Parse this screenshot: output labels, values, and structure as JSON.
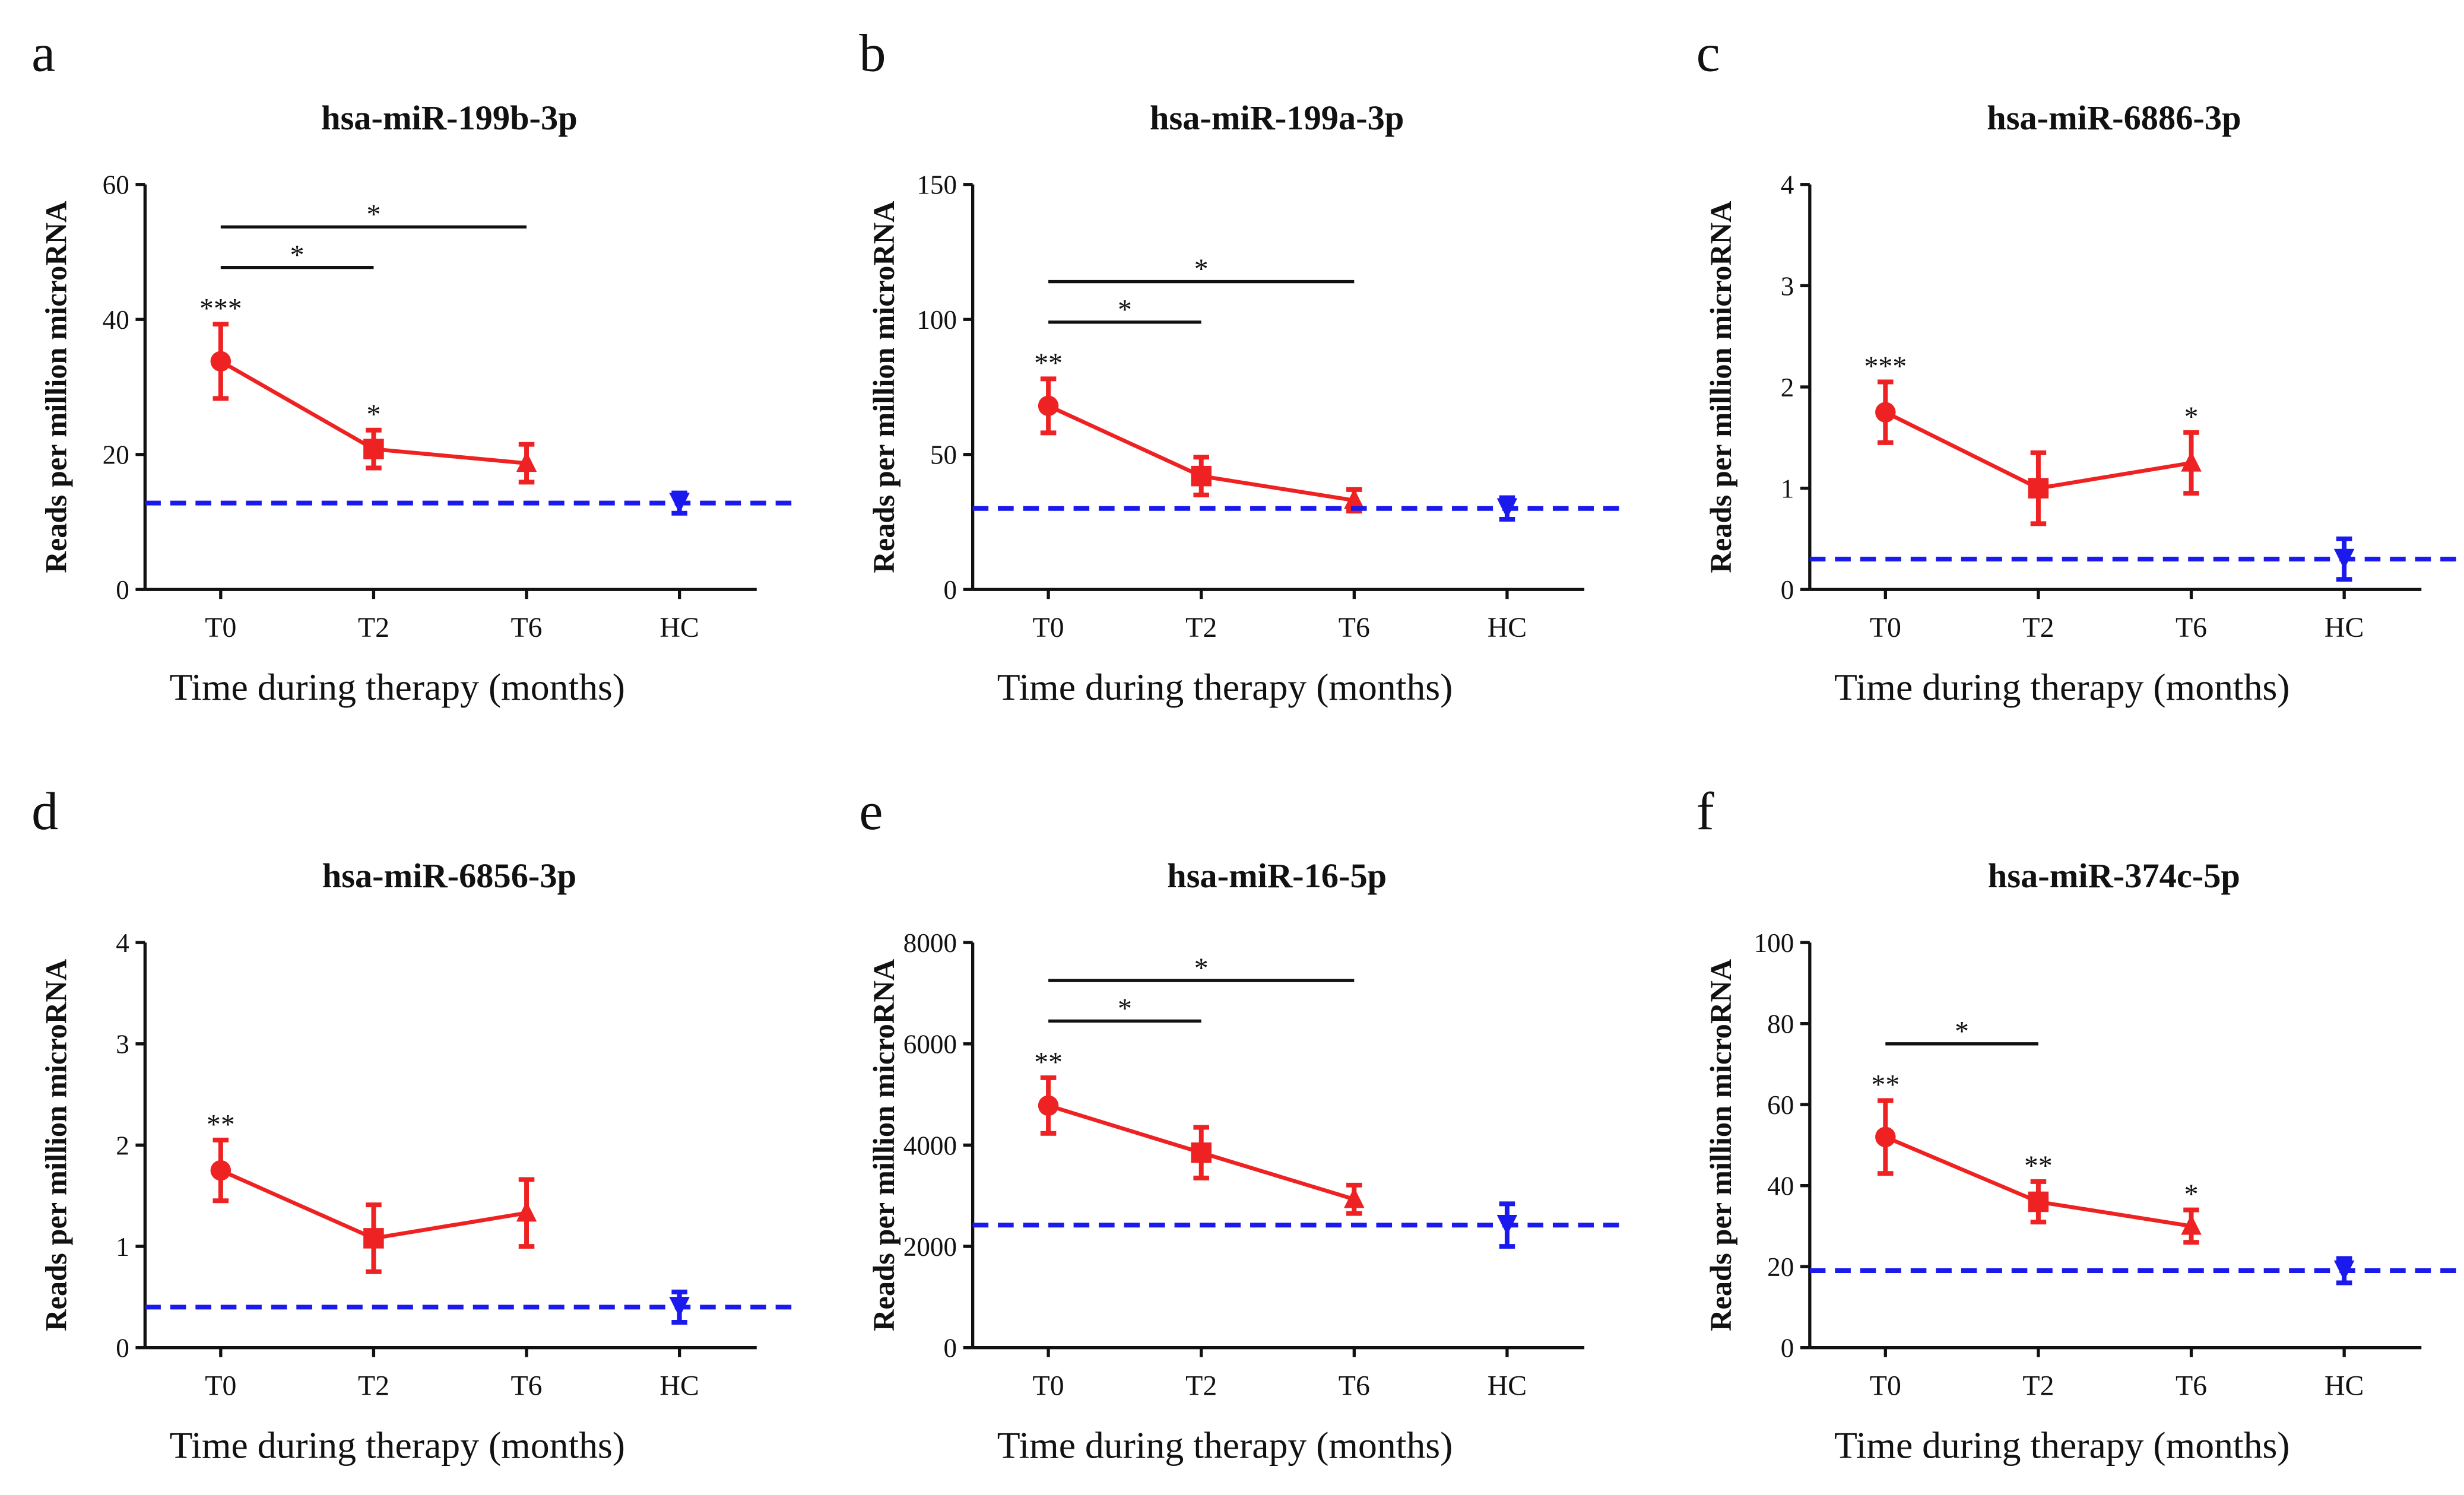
{
  "chart_data": [
    {
      "type": "line",
      "letter": "a",
      "title": "hsa-miR-199b-3p",
      "y_label": "Reads per million microRNA",
      "x_label": "Time during therapy (months)",
      "categories": [
        "T0",
        "T2",
        "T6",
        "HC"
      ],
      "markers": [
        "circle",
        "square",
        "triangle",
        "triangle-down"
      ],
      "series": [
        {
          "color": "#ee2222",
          "values": [
            33.8,
            20.8,
            18.7,
            null
          ],
          "errors": [
            5.5,
            2.8,
            2.8,
            null
          ]
        },
        {
          "color": "#1a1aee",
          "values": [
            null,
            null,
            null,
            12.8
          ],
          "errors": [
            null,
            null,
            null,
            1.5
          ],
          "reference_line": true
        }
      ],
      "ylim": [
        0,
        60
      ],
      "yticks": [
        0,
        20,
        40,
        60
      ],
      "annotations": [
        {
          "category": "T0",
          "text": "***"
        },
        {
          "category": "T2",
          "text": "*"
        }
      ],
      "brackets": [
        {
          "from": "T0",
          "to": "T2",
          "text": "*"
        },
        {
          "from": "T0",
          "to": "T6",
          "text": "*"
        }
      ]
    },
    {
      "type": "line",
      "letter": "b",
      "title": "hsa-miR-199a-3p",
      "y_label": "Reads per million microRNA",
      "x_label": "Time during therapy (months)",
      "categories": [
        "T0",
        "T2",
        "T6",
        "HC"
      ],
      "markers": [
        "circle",
        "square",
        "triangle",
        "triangle-down"
      ],
      "series": [
        {
          "color": "#ee2222",
          "values": [
            68,
            42,
            33,
            null
          ],
          "errors": [
            10,
            7,
            4,
            null
          ]
        },
        {
          "color": "#1a1aee",
          "values": [
            null,
            null,
            null,
            30
          ],
          "errors": [
            null,
            null,
            null,
            4
          ],
          "reference_line": true
        }
      ],
      "ylim": [
        0,
        150
      ],
      "yticks": [
        0,
        50,
        100,
        150
      ],
      "annotations": [
        {
          "category": "T0",
          "text": "**"
        }
      ],
      "brackets": [
        {
          "from": "T0",
          "to": "T2",
          "text": "*"
        },
        {
          "from": "T0",
          "to": "T6",
          "text": "*"
        }
      ]
    },
    {
      "type": "line",
      "letter": "c",
      "title": "hsa-miR-6886-3p",
      "y_label": "Reads per million microRNA",
      "x_label": "Time during therapy (months)",
      "categories": [
        "T0",
        "T2",
        "T6",
        "HC"
      ],
      "markers": [
        "circle",
        "square",
        "triangle",
        "triangle-down"
      ],
      "series": [
        {
          "color": "#ee2222",
          "values": [
            1.75,
            1.0,
            1.25,
            null
          ],
          "errors": [
            0.3,
            0.35,
            0.3,
            null
          ]
        },
        {
          "color": "#1a1aee",
          "values": [
            null,
            null,
            null,
            0.3
          ],
          "errors": [
            null,
            null,
            null,
            0.2
          ],
          "reference_line": true
        }
      ],
      "ylim": [
        0,
        4
      ],
      "yticks": [
        0,
        1,
        2,
        3,
        4
      ],
      "annotations": [
        {
          "category": "T0",
          "text": "***"
        },
        {
          "category": "T6",
          "text": "*"
        }
      ],
      "brackets": []
    },
    {
      "type": "line",
      "letter": "d",
      "title": "hsa-miR-6856-3p",
      "y_label": "Reads per million microRNA",
      "x_label": "Time during therapy (months)",
      "categories": [
        "T0",
        "T2",
        "T6",
        "HC"
      ],
      "markers": [
        "circle",
        "square",
        "triangle",
        "triangle-down"
      ],
      "series": [
        {
          "color": "#ee2222",
          "values": [
            1.75,
            1.08,
            1.33,
            null
          ],
          "errors": [
            0.3,
            0.33,
            0.33,
            null
          ]
        },
        {
          "color": "#1a1aee",
          "values": [
            null,
            null,
            null,
            0.4
          ],
          "errors": [
            null,
            null,
            null,
            0.15
          ],
          "reference_line": true
        }
      ],
      "ylim": [
        0,
        4
      ],
      "yticks": [
        0,
        1,
        2,
        3,
        4
      ],
      "annotations": [
        {
          "category": "T0",
          "text": "**"
        }
      ],
      "brackets": []
    },
    {
      "type": "line",
      "letter": "e",
      "title": "hsa-miR-16-5p",
      "y_label": "Reads per million microRNA",
      "x_label": "Time during therapy (months)",
      "categories": [
        "T0",
        "T2",
        "T6",
        "HC"
      ],
      "markers": [
        "circle",
        "square",
        "triangle",
        "triangle-down"
      ],
      "series": [
        {
          "color": "#ee2222",
          "values": [
            4780,
            3850,
            2930,
            null
          ],
          "errors": [
            550,
            500,
            280,
            null
          ]
        },
        {
          "color": "#1a1aee",
          "values": [
            null,
            null,
            null,
            2420
          ],
          "errors": [
            null,
            null,
            null,
            420
          ],
          "reference_line": true
        }
      ],
      "ylim": [
        0,
        8000
      ],
      "yticks": [
        0,
        2000,
        4000,
        6000,
        8000
      ],
      "annotations": [
        {
          "category": "T0",
          "text": "**"
        }
      ],
      "brackets": [
        {
          "from": "T0",
          "to": "T2",
          "text": "*"
        },
        {
          "from": "T0",
          "to": "T6",
          "text": "*"
        }
      ]
    },
    {
      "type": "line",
      "letter": "f",
      "title": "hsa-miR-374c-5p",
      "y_label": "Reads per million microRNA",
      "x_label": "Time during therapy (months)",
      "categories": [
        "T0",
        "T2",
        "T6",
        "HC"
      ],
      "markers": [
        "circle",
        "square",
        "triangle",
        "triangle-down"
      ],
      "series": [
        {
          "color": "#ee2222",
          "values": [
            52,
            36,
            30,
            null
          ],
          "errors": [
            9,
            5,
            4,
            null
          ]
        },
        {
          "color": "#1a1aee",
          "values": [
            null,
            null,
            null,
            19
          ],
          "errors": [
            null,
            null,
            null,
            3
          ],
          "reference_line": true
        }
      ],
      "ylim": [
        0,
        100
      ],
      "yticks": [
        0,
        20,
        40,
        60,
        80,
        100
      ],
      "annotations": [
        {
          "category": "T0",
          "text": "**"
        },
        {
          "category": "T2",
          "text": "**"
        },
        {
          "category": "T6",
          "text": "*"
        }
      ],
      "brackets": [
        {
          "from": "T0",
          "to": "T2",
          "text": "*"
        }
      ]
    }
  ]
}
